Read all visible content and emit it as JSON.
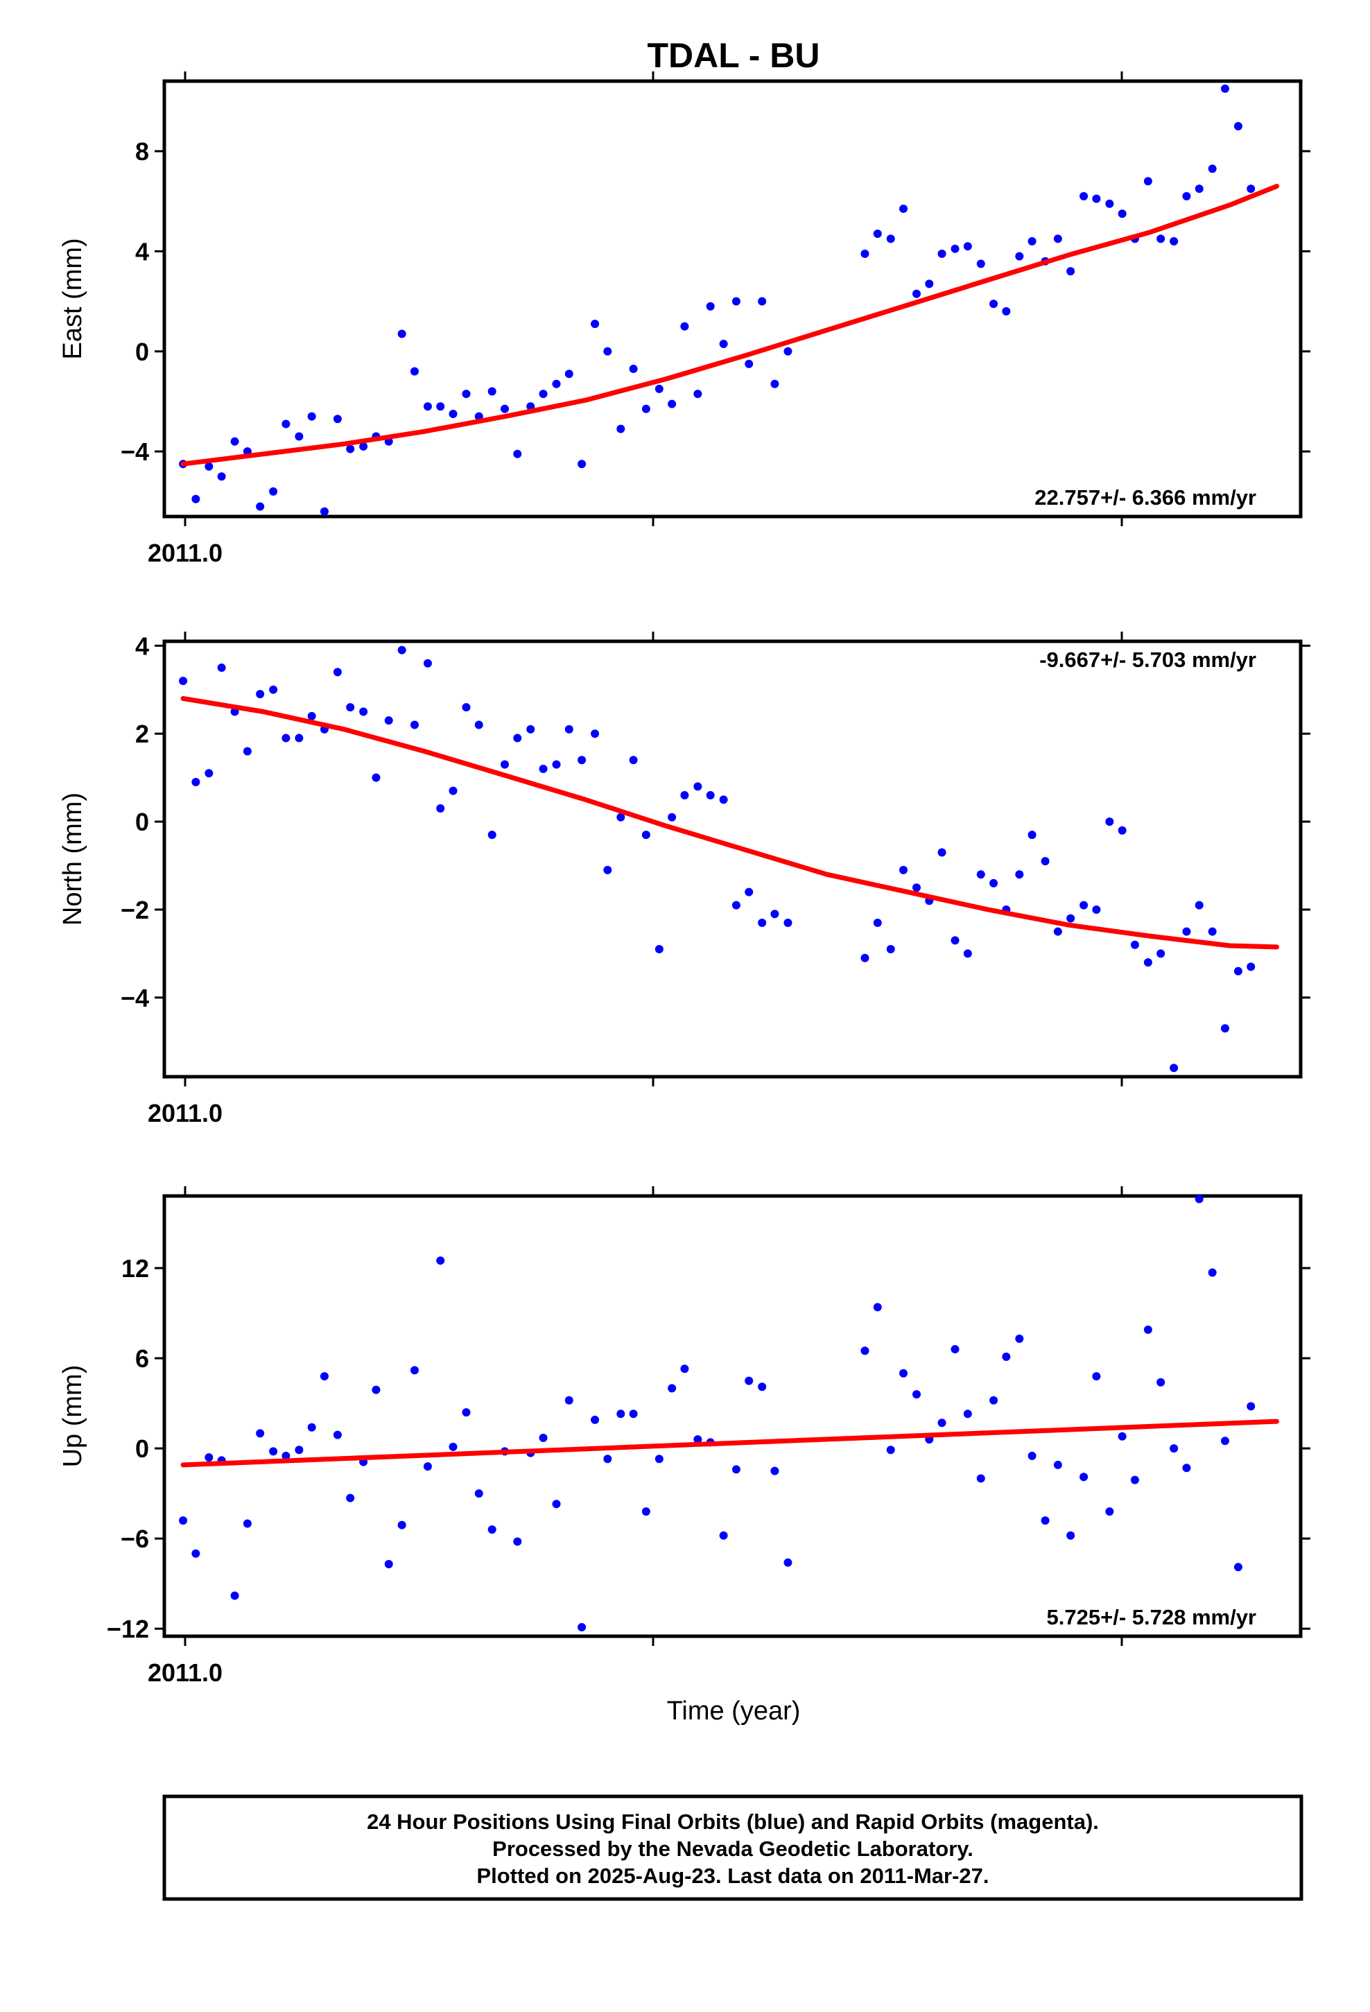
{
  "colors": {
    "points": "#0000ff",
    "fit": "#ff0000",
    "frame": "#000000"
  },
  "chart_data": {
    "type": "scatter",
    "title": "TDAL - BU",
    "xlabel": "Time (year)",
    "x_tick_label": "2011.0",
    "x_start": 2011.0,
    "xlim": [
      2010.996,
      2011.238
    ],
    "x": [
      2011.0,
      2011.0027,
      2011.0055,
      2011.0082,
      2011.011,
      2011.0137,
      2011.0164,
      2011.0192,
      2011.0219,
      2011.0247,
      2011.0274,
      2011.0301,
      2011.0329,
      2011.0356,
      2011.0384,
      2011.0411,
      2011.0438,
      2011.0466,
      2011.0493,
      2011.0521,
      2011.0548,
      2011.0575,
      2011.0603,
      2011.063,
      2011.0658,
      2011.0685,
      2011.0712,
      2011.074,
      2011.0767,
      2011.0795,
      2011.0822,
      2011.0849,
      2011.0877,
      2011.0904,
      2011.0932,
      2011.0959,
      2011.0986,
      2011.1014,
      2011.1041,
      2011.1068,
      2011.1096,
      2011.1123,
      2011.1151,
      2011.1178,
      2011.1205,
      2011.1233,
      2011.126,
      2011.1288,
      2011.1452,
      2011.1479,
      2011.1507,
      2011.1534,
      2011.1562,
      2011.1589,
      2011.1616,
      2011.1644,
      2011.1671,
      2011.1699,
      2011.1726,
      2011.1753,
      2011.1781,
      2011.1808,
      2011.1836,
      2011.1863,
      2011.189,
      2011.1918,
      2011.1945,
      2011.1973,
      2011.2,
      2011.2027,
      2011.2055,
      2011.2082,
      2011.211,
      2011.2137,
      2011.2164,
      2011.2192,
      2011.2219,
      2011.2247,
      2011.2274,
      2011.2301,
      2011.2329
    ],
    "panels": [
      {
        "ylabel": "East (mm)",
        "ylim": [
          -6.6,
          10.8
        ],
        "yticks": [
          -4,
          0,
          4,
          8
        ],
        "ytick_labels": [
          "−4",
          "0",
          "4",
          "8"
        ],
        "rate": "22.757+/- 6.366 mm/yr",
        "rate_pos": "bottom-right",
        "series": [
          {
            "values": [
              -4.5,
              -5.9,
              -4.6,
              -5.0,
              -3.6,
              -4.0,
              -6.2,
              -5.6,
              -2.9,
              -3.4,
              -2.6,
              -6.4,
              -2.7,
              -3.9,
              -3.8,
              -3.4,
              -3.6,
              0.7,
              -0.8,
              -2.2,
              -2.2,
              -2.5,
              -1.7,
              -2.6,
              -1.6,
              -2.3,
              -4.1,
              -2.2,
              -1.7,
              -1.3,
              -0.9,
              -4.5,
              1.1,
              0.0,
              -3.1,
              -0.7,
              -2.3,
              -1.5,
              -2.1,
              1.0,
              -1.7,
              1.8,
              0.3,
              2.0,
              -0.5,
              2.0,
              -1.3,
              0.0,
              3.9,
              4.7,
              4.5,
              5.7,
              2.3,
              2.7,
              3.9,
              4.1,
              4.2,
              3.5,
              1.9,
              1.6,
              3.8,
              4.4,
              3.6,
              4.5,
              3.2,
              6.2,
              6.1,
              5.9,
              5.5,
              4.5,
              6.8,
              4.5,
              4.4,
              6.2,
              6.5,
              7.3,
              10.5,
              9.0,
              6.5
            ]
          }
        ],
        "fit": {
          "x": [
            2011.0,
            2011.0171,
            2011.0343,
            2011.0514,
            2011.0686,
            2011.0857,
            2011.1029,
            2011.12,
            2011.1371,
            2011.1543,
            2011.1714,
            2011.1886,
            2011.2057,
            2011.2229,
            2011.2329
          ],
          "values": [
            -4.5,
            -4.1,
            -3.7,
            -3.2,
            -2.6,
            -1.95,
            -1.1,
            -0.15,
            0.85,
            1.85,
            2.85,
            3.85,
            4.75,
            5.85,
            6.6
          ]
        }
      },
      {
        "ylabel": "North (mm)",
        "ylim": [
          -5.8,
          4.1
        ],
        "yticks": [
          -4,
          -2,
          0,
          2,
          4
        ],
        "ytick_labels": [
          "−4",
          "−2",
          "0",
          "2",
          "4"
        ],
        "rate": "-9.667+/- 5.703 mm/yr",
        "rate_pos": "top-right",
        "series": [
          {
            "values": [
              3.2,
              0.9,
              1.1,
              3.5,
              2.5,
              1.6,
              2.9,
              3.0,
              1.9,
              1.9,
              2.4,
              2.1,
              3.4,
              2.6,
              2.5,
              1.0,
              2.3,
              3.9,
              2.2,
              3.6,
              0.3,
              0.7,
              2.6,
              2.2,
              -0.3,
              1.3,
              1.9,
              2.1,
              1.2,
              1.3,
              2.1,
              1.4,
              2.0,
              -1.1,
              0.1,
              1.4,
              -0.3,
              -2.9,
              0.1,
              0.6,
              0.8,
              0.6,
              0.5,
              -1.9,
              -1.6,
              -2.3,
              -2.1,
              -2.3,
              -3.1,
              -2.3,
              -2.9,
              -1.1,
              -1.5,
              -1.8,
              -0.7,
              -2.7,
              -3.0,
              -1.2,
              -1.4,
              -2.0,
              -1.2,
              -0.3,
              -0.9,
              -2.5,
              -2.2,
              -1.9,
              -2.0,
              0.0,
              -0.2,
              -2.8,
              -3.2,
              -3.0,
              -5.6,
              -2.5,
              -1.9,
              -2.5,
              -4.7,
              -3.4,
              -3.3
            ]
          }
        ],
        "fit": {
          "x": [
            2011.0,
            2011.0171,
            2011.0343,
            2011.0514,
            2011.0686,
            2011.0857,
            2011.1029,
            2011.12,
            2011.1371,
            2011.1543,
            2011.1714,
            2011.1886,
            2011.2057,
            2011.2229,
            2011.2329
          ],
          "values": [
            2.8,
            2.5,
            2.1,
            1.6,
            1.05,
            0.5,
            -0.1,
            -0.65,
            -1.2,
            -1.6,
            -2.0,
            -2.35,
            -2.6,
            -2.82,
            -2.85
          ]
        }
      },
      {
        "ylabel": "Up (mm)",
        "ylim": [
          -12.5,
          16.8
        ],
        "yticks": [
          -12,
          -6,
          0,
          6,
          12
        ],
        "ytick_labels": [
          "−12",
          "−6",
          "0",
          "6",
          "12"
        ],
        "rate": "5.725+/- 5.728 mm/yr",
        "rate_pos": "bottom-right",
        "series": [
          {
            "values": [
              -4.8,
              -7.0,
              -0.6,
              -0.8,
              -9.8,
              -5.0,
              1.0,
              -0.2,
              -0.5,
              -0.1,
              1.4,
              4.8,
              0.9,
              -3.3,
              -0.9,
              3.9,
              -7.7,
              -5.1,
              5.2,
              -1.2,
              12.5,
              0.1,
              2.4,
              -3.0,
              -5.4,
              -0.2,
              -6.2,
              -0.3,
              0.7,
              -3.7,
              3.2,
              -11.9,
              1.9,
              -0.7,
              2.3,
              2.3,
              -4.2,
              -0.7,
              4.0,
              5.3,
              0.6,
              0.4,
              -5.8,
              -1.4,
              4.5,
              4.1,
              -1.5,
              -7.6,
              6.5,
              9.4,
              -0.1,
              5.0,
              3.6,
              0.6,
              1.7,
              6.6,
              2.3,
              -2.0,
              3.2,
              6.1,
              7.3,
              -0.5,
              -4.8,
              -1.1,
              -5.8,
              -1.9,
              4.8,
              -4.2,
              0.8,
              -2.1,
              7.9,
              4.4,
              0.0,
              -1.3,
              16.6,
              11.7,
              0.5,
              -7.9,
              2.8
            ]
          }
        ],
        "fit": {
          "x": [
            2011.0,
            2011.2329
          ],
          "values": [
            -1.1,
            1.8
          ]
        }
      }
    ]
  },
  "footer": {
    "lines": [
      "24 Hour Positions Using Final Orbits (blue) and Rapid Orbits (magenta).",
      "Processed by the Nevada Geodetic Laboratory.",
      "Plotted on 2025-Aug-23. Last data on 2011-Mar-27."
    ]
  }
}
